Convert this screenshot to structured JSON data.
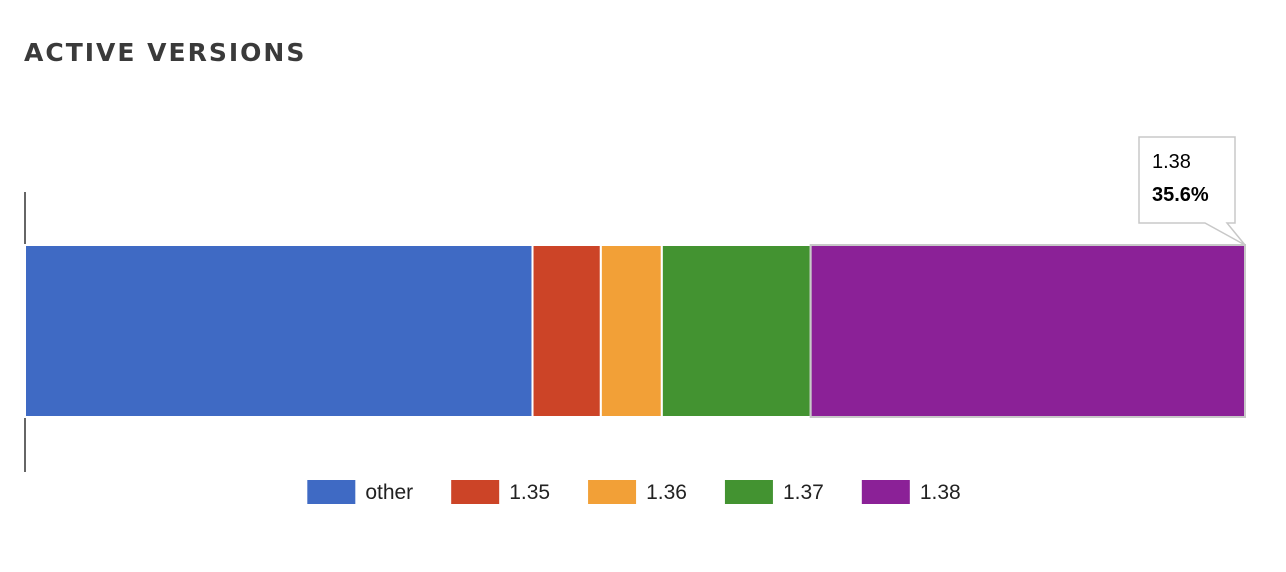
{
  "page": {
    "title": "ACTIVE VERSIONS"
  },
  "chart_data": {
    "type": "bar",
    "orientation": "horizontal",
    "stacked": true,
    "percent_stacked": true,
    "xlim": [
      0,
      100
    ],
    "grid": false,
    "legend_position": "bottom",
    "series": [
      {
        "name": "other",
        "value": 41.6,
        "color": "#3f6ac4"
      },
      {
        "name": "1.35",
        "value": 5.6,
        "color": "#cc4427"
      },
      {
        "name": "1.36",
        "value": 5.0,
        "color": "#f2a037"
      },
      {
        "name": "1.37",
        "value": 12.2,
        "color": "#439331"
      },
      {
        "name": "1.38",
        "value": 35.6,
        "color": "#8b2197"
      }
    ],
    "tooltip": {
      "series": "1.38",
      "label": "1.38",
      "value": "35.6%"
    }
  }
}
